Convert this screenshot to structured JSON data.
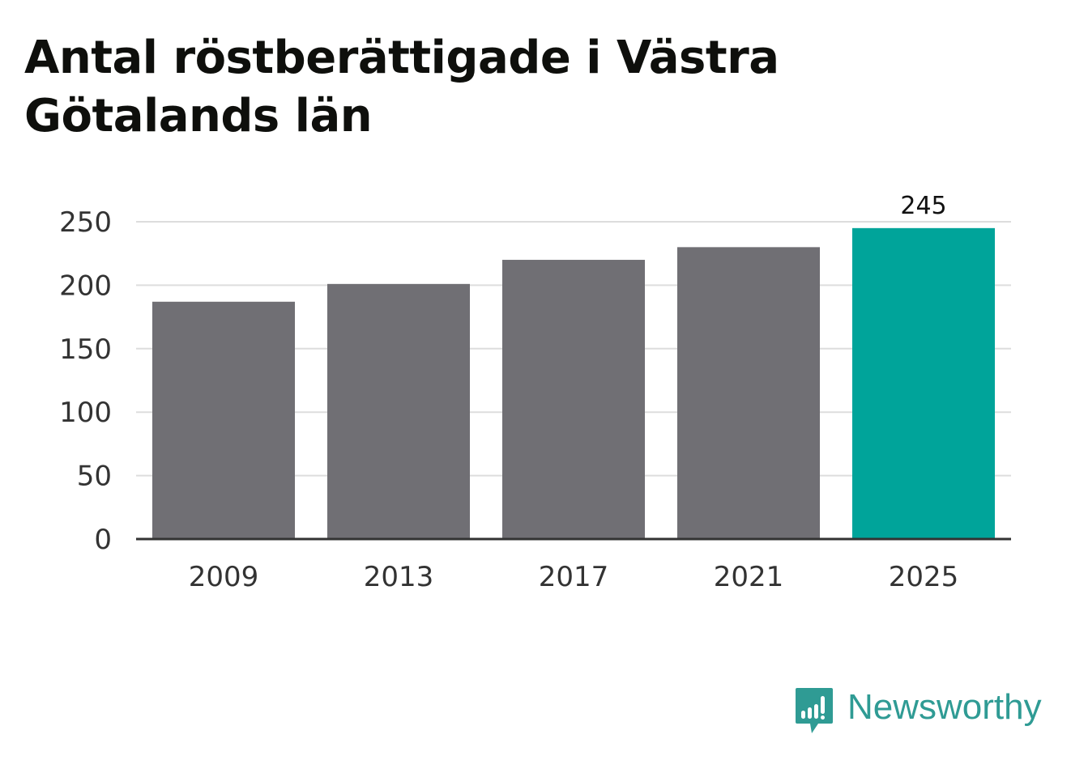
{
  "chart_data": {
    "type": "bar",
    "title": "Antal röstberättigade i Västra Götalands län",
    "categories": [
      "2009",
      "2013",
      "2017",
      "2021",
      "2025"
    ],
    "values": [
      187,
      201,
      220,
      230,
      245
    ],
    "highlight_index": 4,
    "data_labels": [
      {
        "index": 4,
        "text": "245"
      }
    ],
    "ylim": [
      0,
      250
    ],
    "yticks": [
      "0",
      "50",
      "100",
      "150",
      "200",
      "250"
    ],
    "grid": true,
    "xlabel": "",
    "ylabel": "",
    "colors": {
      "bar": "#706f74",
      "highlight": "#00a49a",
      "grid": "#dddddd",
      "axis": "#333333"
    }
  },
  "brand": {
    "name": "Newsworthy",
    "icon": "newsworthy-logo-icon",
    "color": "#2f9b94"
  }
}
